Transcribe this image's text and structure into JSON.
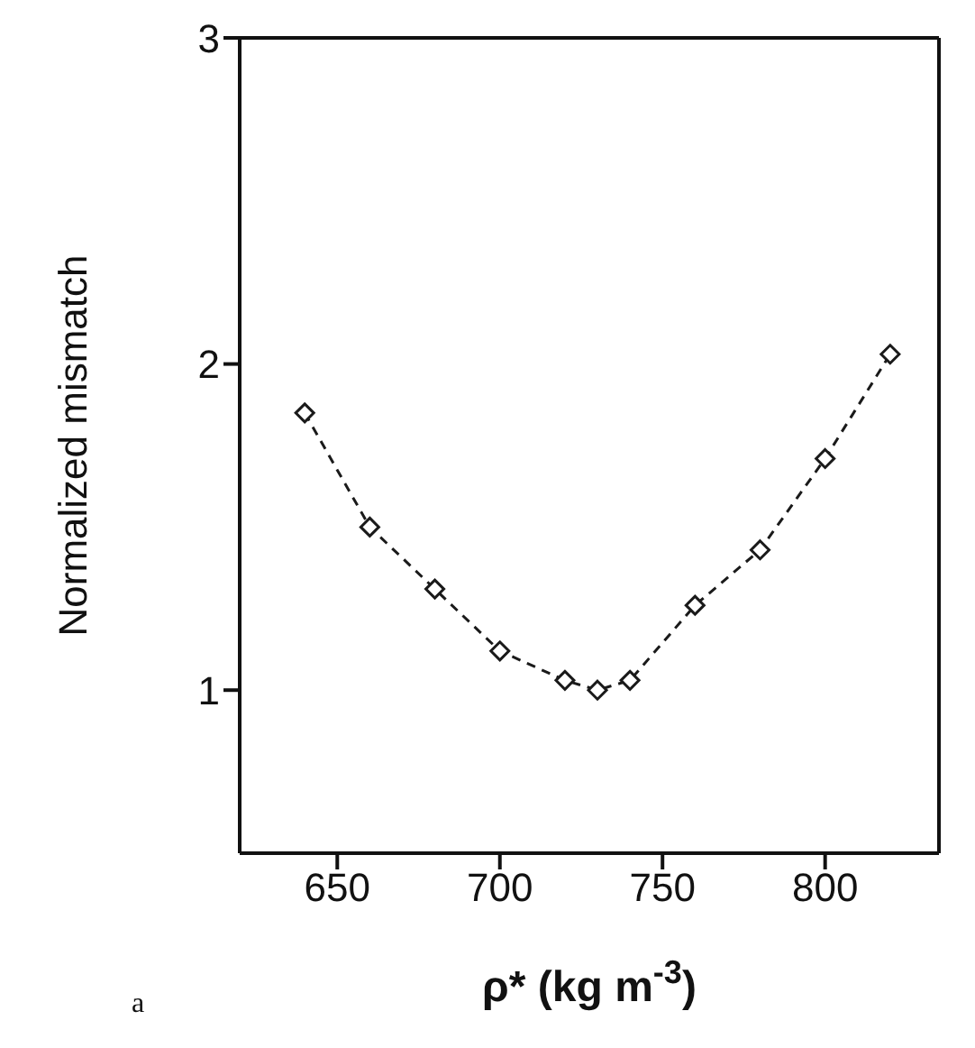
{
  "chart_data": {
    "type": "line",
    "xlabel": "ρ*  (kg m$^{-3}$)",
    "ylabel": "Normalized mismatch",
    "x": [
      640,
      660,
      680,
      700,
      720,
      730,
      740,
      760,
      780,
      800,
      820
    ],
    "series": [
      {
        "color": "#1a1a1a",
        "values": [
          1.85,
          1.5,
          1.31,
          1.12,
          1.03,
          1.0,
          1.03,
          1.26,
          1.43,
          1.71,
          2.03
        ]
      }
    ],
    "xlim": [
      620,
      835
    ],
    "xticks": [
      650,
      700,
      750,
      800
    ],
    "ylim": [
      0.5,
      3
    ],
    "yticks": [
      1,
      2,
      3
    ],
    "marker": "diamond",
    "line_style": "dashed",
    "annotations": [
      "a"
    ]
  }
}
